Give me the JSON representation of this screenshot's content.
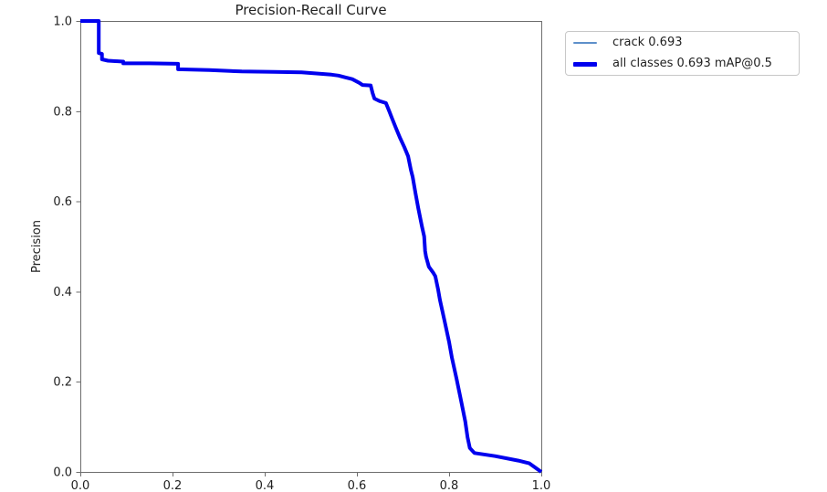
{
  "figure": {
    "title": "Precision-Recall Curve",
    "ylabel": "Precision",
    "background": "#ffffff",
    "text_color": "#1f1f1f",
    "spine_color": "#6e6e6e",
    "tick_color": "#6e6e6e"
  },
  "legend": {
    "items": [
      {
        "label": "crack 0.693",
        "color": "#5e90ca",
        "swatch_thickness": 2
      },
      {
        "label": "all classes 0.693 mAP@0.5",
        "color": "#0000ee",
        "swatch_thickness": 5
      }
    ]
  },
  "chart_data": {
    "type": "line",
    "title": "Precision-Recall Curve",
    "xlabel": "",
    "ylabel": "Precision",
    "xlim": [
      0.0,
      1.0
    ],
    "ylim": [
      0.0,
      1.0
    ],
    "xticks": [
      "0.0",
      "0.2",
      "0.4",
      "0.6",
      "0.8",
      "1.0"
    ],
    "yticks": [
      "0.0",
      "0.2",
      "0.4",
      "0.6",
      "0.8",
      "1.0"
    ],
    "grid": false,
    "legend_position": "outside upper right",
    "points_recall_precision": [
      [
        0.0,
        1.0
      ],
      [
        0.04,
        1.0
      ],
      [
        0.04,
        0.929
      ],
      [
        0.047,
        0.927
      ],
      [
        0.047,
        0.915
      ],
      [
        0.06,
        0.912
      ],
      [
        0.093,
        0.91
      ],
      [
        0.093,
        0.906
      ],
      [
        0.15,
        0.906
      ],
      [
        0.212,
        0.905
      ],
      [
        0.212,
        0.893
      ],
      [
        0.28,
        0.891
      ],
      [
        0.35,
        0.888
      ],
      [
        0.42,
        0.887
      ],
      [
        0.48,
        0.886
      ],
      [
        0.545,
        0.881
      ],
      [
        0.56,
        0.879
      ],
      [
        0.575,
        0.875
      ],
      [
        0.59,
        0.871
      ],
      [
        0.605,
        0.863
      ],
      [
        0.612,
        0.858
      ],
      [
        0.63,
        0.857
      ],
      [
        0.634,
        0.84
      ],
      [
        0.638,
        0.828
      ],
      [
        0.65,
        0.822
      ],
      [
        0.663,
        0.818
      ],
      [
        0.67,
        0.8
      ],
      [
        0.677,
        0.782
      ],
      [
        0.685,
        0.762
      ],
      [
        0.693,
        0.742
      ],
      [
        0.703,
        0.72
      ],
      [
        0.711,
        0.7
      ],
      [
        0.717,
        0.67
      ],
      [
        0.721,
        0.654
      ],
      [
        0.727,
        0.619
      ],
      [
        0.733,
        0.585
      ],
      [
        0.741,
        0.545
      ],
      [
        0.746,
        0.522
      ],
      [
        0.748,
        0.49
      ],
      [
        0.75,
        0.477
      ],
      [
        0.756,
        0.455
      ],
      [
        0.766,
        0.441
      ],
      [
        0.77,
        0.434
      ],
      [
        0.776,
        0.405
      ],
      [
        0.78,
        0.382
      ],
      [
        0.79,
        0.335
      ],
      [
        0.8,
        0.288
      ],
      [
        0.806,
        0.254
      ],
      [
        0.816,
        0.207
      ],
      [
        0.826,
        0.158
      ],
      [
        0.835,
        0.112
      ],
      [
        0.84,
        0.077
      ],
      [
        0.845,
        0.053
      ],
      [
        0.855,
        0.042
      ],
      [
        0.9,
        0.035
      ],
      [
        0.95,
        0.025
      ],
      [
        0.974,
        0.019
      ],
      [
        1.0,
        0.0
      ]
    ],
    "series": [
      {
        "name": "crack 0.693",
        "color": "#5e90ca",
        "linewidth": 1.3
      },
      {
        "name": "all classes 0.693 mAP@0.5",
        "color": "#0000ee",
        "linewidth": 4
      }
    ]
  }
}
